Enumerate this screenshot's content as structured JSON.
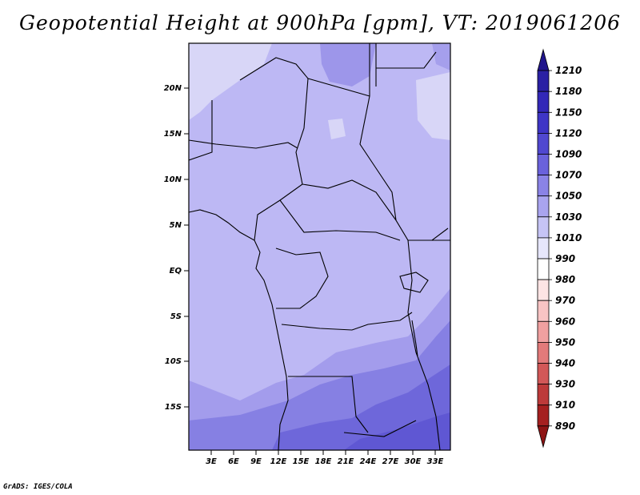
{
  "title": "Geopotential Height at 900hPa [gpm], VT: 2019061206",
  "credit": "GrADS: IGES/COLA",
  "map": {
    "lat_labels": [
      "20N",
      "15N",
      "10N",
      "5N",
      "EQ",
      "5S",
      "10S",
      "15S"
    ],
    "lon_labels": [
      "3E",
      "6E",
      "9E",
      "12E",
      "15E",
      "18E",
      "21E",
      "24E",
      "27E",
      "30E",
      "33E"
    ]
  },
  "colorbar": {
    "levels": [
      "1210",
      "1180",
      "1150",
      "1120",
      "1090",
      "1070",
      "1050",
      "1030",
      "1010",
      "990",
      "980",
      "970",
      "960",
      "950",
      "940",
      "930",
      "910",
      "890"
    ],
    "colors": [
      "#21158c",
      "#2a20a4",
      "#3328b8",
      "#3e35c6",
      "#5048d0",
      "#6a62dc",
      "#8a83e6",
      "#a9a4ef",
      "#c6c4f5",
      "#e6e6fb",
      "#ffffff",
      "#fde4e4",
      "#f8c4c4",
      "#f0a0a0",
      "#e27a7a",
      "#d25858",
      "#bd3a3a",
      "#a52020",
      "#8e1414"
    ]
  }
}
